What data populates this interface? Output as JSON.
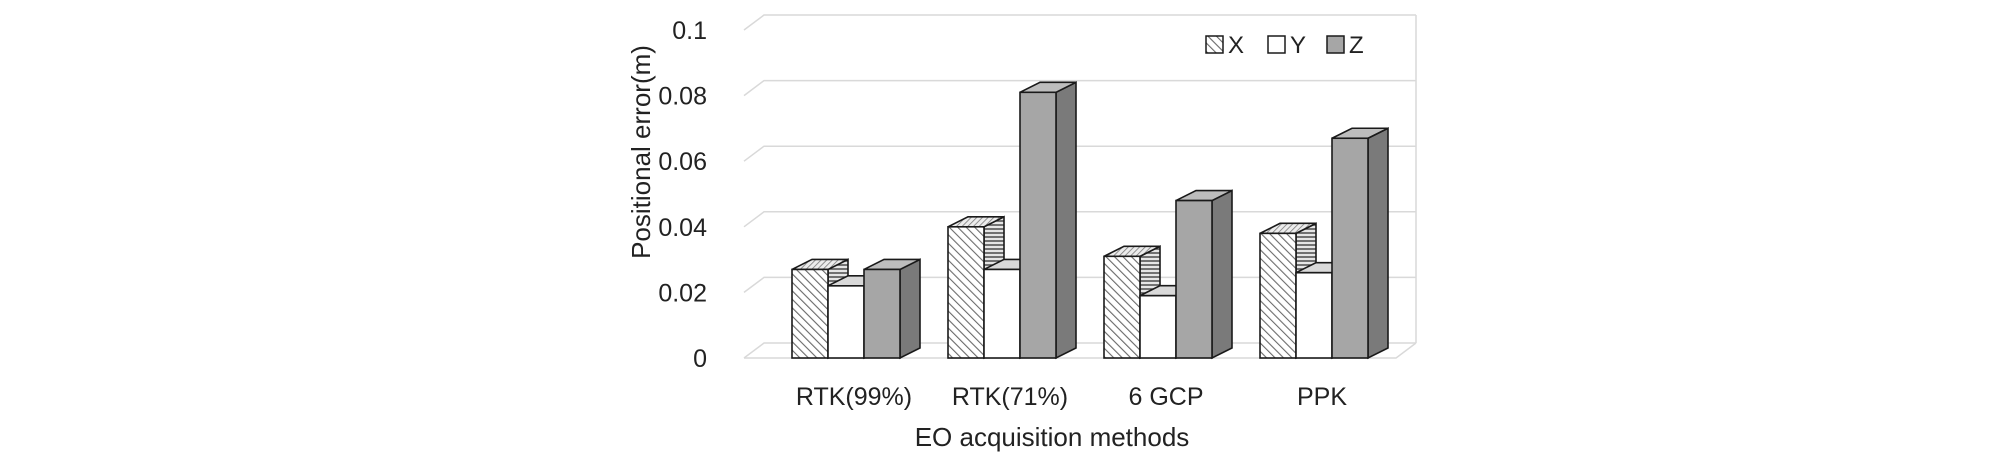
{
  "chart_data": {
    "type": "bar",
    "style": "3d-clustered-column",
    "categories": [
      "RTK(99%)",
      "RTK(71%)",
      "6 GCP",
      "PPK"
    ],
    "series": [
      {
        "name": "X",
        "values": [
          0.027,
          0.04,
          0.031,
          0.038
        ],
        "pattern": "diagonal-hatch",
        "color": "#c9c9c9"
      },
      {
        "name": "Y",
        "values": [
          0.022,
          0.027,
          0.019,
          0.026
        ],
        "pattern": "solid",
        "color": "#ffffff"
      },
      {
        "name": "Z",
        "values": [
          0.027,
          0.081,
          0.048,
          0.067
        ],
        "pattern": "solid",
        "color": "#a6a6a6"
      }
    ],
    "title": "",
    "xlabel": "EO acquisition methods",
    "ylabel": "Positional error(m)",
    "ylim": [
      0,
      0.1
    ],
    "yticks": [
      "0",
      "0.02",
      "0.04",
      "0.06",
      "0.08",
      "0.1"
    ],
    "grid": true,
    "legend_position": "top-right"
  }
}
